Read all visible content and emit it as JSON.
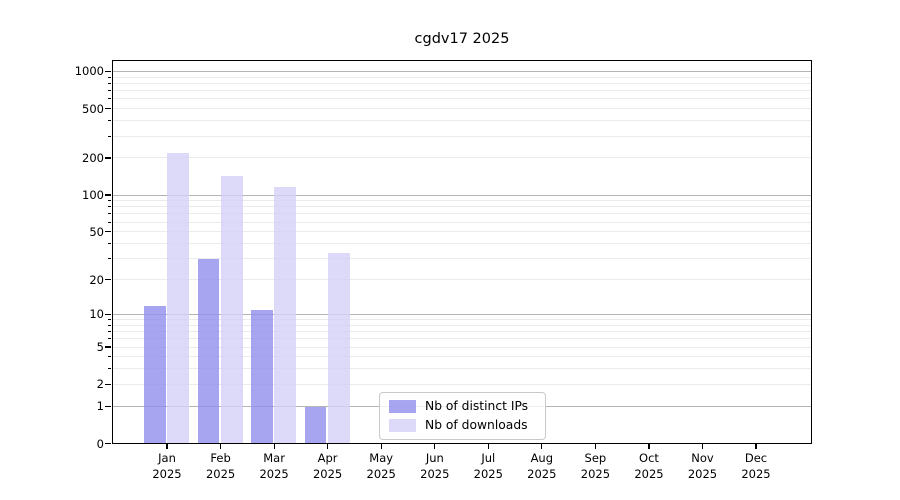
{
  "title": "cgdv17 2025",
  "chart_data": {
    "type": "bar",
    "title": "cgdv17 2025",
    "year": "2025",
    "categories": [
      "Jan",
      "Feb",
      "Mar",
      "Apr",
      "May",
      "Jun",
      "Jul",
      "Aug",
      "Sep",
      "Oct",
      "Nov",
      "Dec"
    ],
    "series": [
      {
        "name": "Nb of distinct IPs",
        "color": "rgba(145,141,236,0.8)",
        "values": [
          12,
          30,
          11,
          1,
          0,
          0,
          0,
          0,
          0,
          0,
          0,
          0
        ]
      },
      {
        "name": "Nb of downloads",
        "color": "rgba(211,209,246,0.8)",
        "values": [
          220,
          145,
          117,
          34,
          0,
          0,
          0,
          0,
          0,
          0,
          0,
          0
        ]
      }
    ],
    "xlabel": "",
    "ylabel": "",
    "yscale": "log1p",
    "y_ticks": [
      0,
      1,
      2,
      5,
      10,
      20,
      50,
      100,
      200,
      500,
      1000
    ],
    "ylim": [
      0,
      1230
    ],
    "grid": true,
    "legend_position": "lower center-right inside plot"
  }
}
